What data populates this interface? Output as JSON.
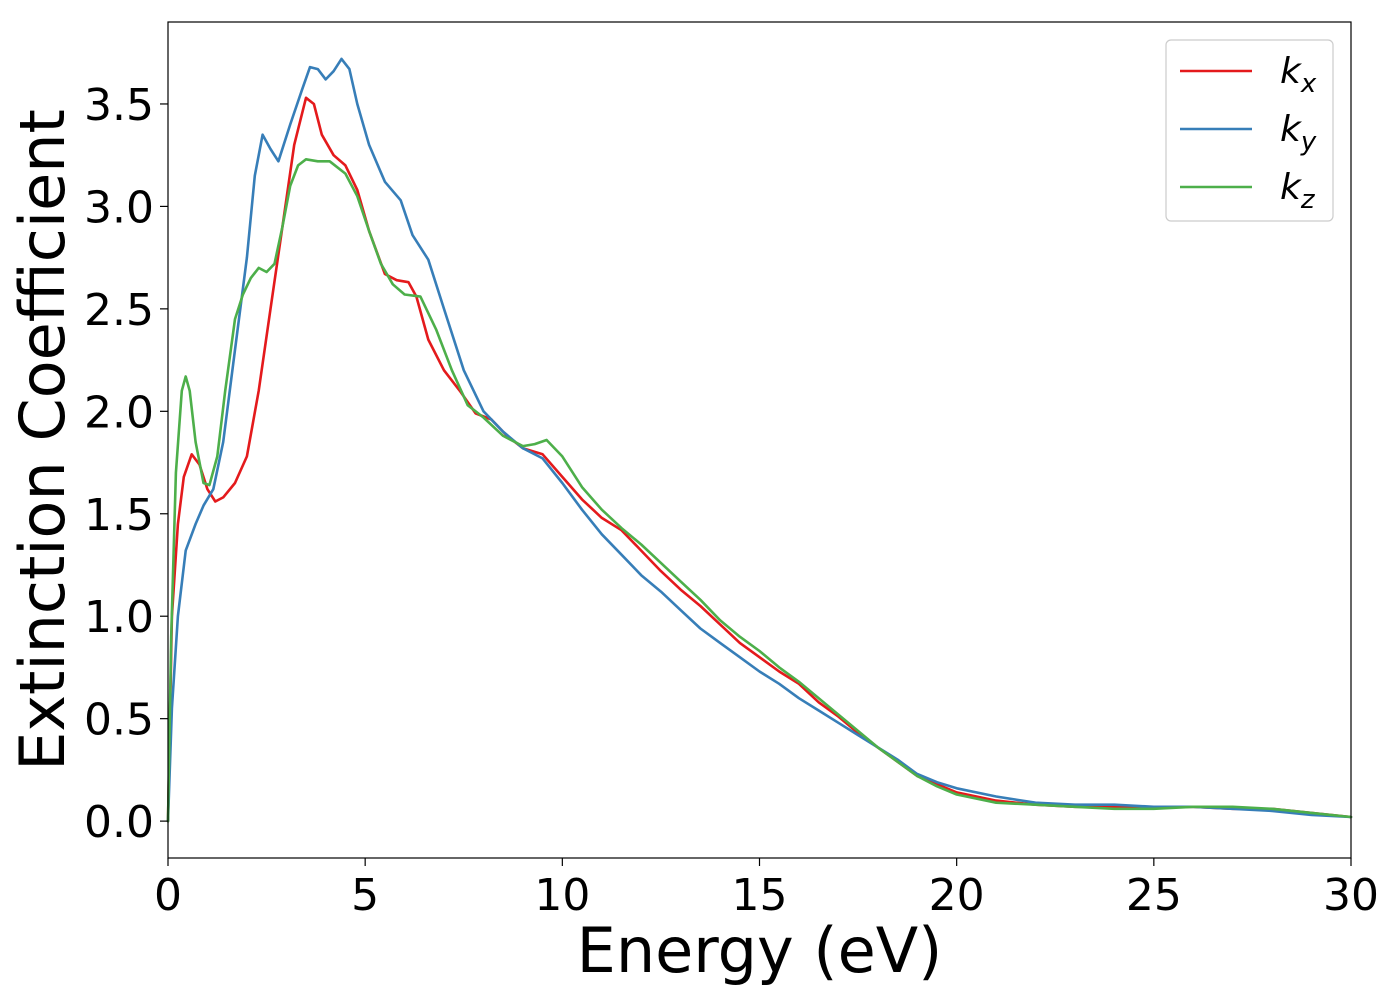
{
  "chart_data": {
    "type": "line",
    "xlabel": "Energy (eV)",
    "ylabel": "Extinction Coefficient",
    "xlim": [
      0,
      30
    ],
    "ylim": [
      -0.18,
      3.9
    ],
    "xticks": [
      0,
      5,
      10,
      15,
      20,
      25,
      30
    ],
    "yticks": [
      0.0,
      0.5,
      1.0,
      1.5,
      2.0,
      2.5,
      3.0,
      3.5
    ],
    "xtick_labels": [
      "0",
      "5",
      "10",
      "15",
      "20",
      "25",
      "30"
    ],
    "ytick_labels": [
      "0.0",
      "0.5",
      "1.0",
      "1.5",
      "2.0",
      "2.5",
      "3.0",
      "3.5"
    ],
    "grid": false,
    "legend_position": "top-right",
    "series": [
      {
        "name": "k",
        "subscript": "x",
        "color": "#e41a1c",
        "points": [
          [
            0,
            0
          ],
          [
            0.1,
            1.0
          ],
          [
            0.25,
            1.45
          ],
          [
            0.4,
            1.68
          ],
          [
            0.6,
            1.79
          ],
          [
            0.8,
            1.74
          ],
          [
            1.0,
            1.62
          ],
          [
            1.2,
            1.56
          ],
          [
            1.4,
            1.58
          ],
          [
            1.7,
            1.65
          ],
          [
            2.0,
            1.78
          ],
          [
            2.3,
            2.1
          ],
          [
            2.6,
            2.5
          ],
          [
            2.9,
            2.9
          ],
          [
            3.2,
            3.3
          ],
          [
            3.5,
            3.53
          ],
          [
            3.7,
            3.5
          ],
          [
            3.9,
            3.35
          ],
          [
            4.2,
            3.25
          ],
          [
            4.5,
            3.2
          ],
          [
            4.8,
            3.08
          ],
          [
            5.1,
            2.88
          ],
          [
            5.5,
            2.67
          ],
          [
            5.8,
            2.64
          ],
          [
            6.1,
            2.63
          ],
          [
            6.3,
            2.56
          ],
          [
            6.6,
            2.35
          ],
          [
            7.0,
            2.2
          ],
          [
            7.4,
            2.1
          ],
          [
            7.8,
            1.99
          ],
          [
            8.2,
            1.96
          ],
          [
            8.6,
            1.88
          ],
          [
            9.0,
            1.82
          ],
          [
            9.5,
            1.79
          ],
          [
            10.0,
            1.68
          ],
          [
            10.5,
            1.57
          ],
          [
            11.0,
            1.48
          ],
          [
            11.5,
            1.42
          ],
          [
            12.0,
            1.32
          ],
          [
            12.5,
            1.22
          ],
          [
            13.0,
            1.13
          ],
          [
            13.5,
            1.05
          ],
          [
            14.0,
            0.96
          ],
          [
            14.5,
            0.87
          ],
          [
            15.0,
            0.8
          ],
          [
            15.5,
            0.73
          ],
          [
            16.0,
            0.67
          ],
          [
            16.5,
            0.58
          ],
          [
            17.0,
            0.51
          ],
          [
            17.5,
            0.43
          ],
          [
            18.0,
            0.36
          ],
          [
            18.5,
            0.29
          ],
          [
            19.0,
            0.22
          ],
          [
            19.5,
            0.18
          ],
          [
            20.0,
            0.14
          ],
          [
            21.0,
            0.1
          ],
          [
            22.0,
            0.08
          ],
          [
            23.0,
            0.07
          ],
          [
            24.0,
            0.07
          ],
          [
            25.0,
            0.07
          ],
          [
            26.0,
            0.07
          ],
          [
            27.0,
            0.06
          ],
          [
            28.0,
            0.06
          ],
          [
            29.0,
            0.04
          ],
          [
            30.0,
            0.02
          ]
        ]
      },
      {
        "name": "k",
        "subscript": "y",
        "color": "#377eb8",
        "points": [
          [
            0,
            0
          ],
          [
            0.1,
            0.55
          ],
          [
            0.25,
            1.0
          ],
          [
            0.45,
            1.32
          ],
          [
            0.7,
            1.45
          ],
          [
            0.9,
            1.54
          ],
          [
            1.15,
            1.62
          ],
          [
            1.4,
            1.85
          ],
          [
            1.7,
            2.3
          ],
          [
            2.0,
            2.75
          ],
          [
            2.2,
            3.15
          ],
          [
            2.4,
            3.35
          ],
          [
            2.6,
            3.28
          ],
          [
            2.8,
            3.22
          ],
          [
            3.1,
            3.4
          ],
          [
            3.4,
            3.57
          ],
          [
            3.6,
            3.68
          ],
          [
            3.8,
            3.67
          ],
          [
            4.0,
            3.62
          ],
          [
            4.2,
            3.66
          ],
          [
            4.4,
            3.72
          ],
          [
            4.6,
            3.67
          ],
          [
            4.8,
            3.5
          ],
          [
            5.1,
            3.3
          ],
          [
            5.5,
            3.12
          ],
          [
            5.9,
            3.03
          ],
          [
            6.2,
            2.86
          ],
          [
            6.6,
            2.74
          ],
          [
            7.0,
            2.5
          ],
          [
            7.5,
            2.2
          ],
          [
            8.0,
            2.0
          ],
          [
            8.5,
            1.9
          ],
          [
            9.0,
            1.82
          ],
          [
            9.5,
            1.77
          ],
          [
            10.0,
            1.65
          ],
          [
            10.5,
            1.52
          ],
          [
            11.0,
            1.4
          ],
          [
            11.5,
            1.3
          ],
          [
            12.0,
            1.2
          ],
          [
            12.5,
            1.12
          ],
          [
            13.0,
            1.03
          ],
          [
            13.5,
            0.94
          ],
          [
            14.0,
            0.87
          ],
          [
            14.5,
            0.8
          ],
          [
            15.0,
            0.73
          ],
          [
            15.5,
            0.67
          ],
          [
            16.0,
            0.6
          ],
          [
            16.5,
            0.54
          ],
          [
            17.0,
            0.48
          ],
          [
            17.5,
            0.42
          ],
          [
            18.0,
            0.36
          ],
          [
            18.5,
            0.3
          ],
          [
            19.0,
            0.23
          ],
          [
            19.5,
            0.19
          ],
          [
            20.0,
            0.16
          ],
          [
            21.0,
            0.12
          ],
          [
            22.0,
            0.09
          ],
          [
            23.0,
            0.08
          ],
          [
            24.0,
            0.08
          ],
          [
            25.0,
            0.07
          ],
          [
            26.0,
            0.07
          ],
          [
            27.0,
            0.06
          ],
          [
            28.0,
            0.05
          ],
          [
            29.0,
            0.03
          ],
          [
            30.0,
            0.02
          ]
        ]
      },
      {
        "name": "k",
        "subscript": "z",
        "color": "#4daf4a",
        "points": [
          [
            0,
            0
          ],
          [
            0.08,
            0.9
          ],
          [
            0.2,
            1.7
          ],
          [
            0.35,
            2.1
          ],
          [
            0.45,
            2.17
          ],
          [
            0.55,
            2.1
          ],
          [
            0.7,
            1.85
          ],
          [
            0.9,
            1.65
          ],
          [
            1.05,
            1.64
          ],
          [
            1.25,
            1.78
          ],
          [
            1.45,
            2.1
          ],
          [
            1.7,
            2.45
          ],
          [
            1.9,
            2.57
          ],
          [
            2.1,
            2.65
          ],
          [
            2.3,
            2.7
          ],
          [
            2.5,
            2.68
          ],
          [
            2.7,
            2.72
          ],
          [
            2.9,
            2.9
          ],
          [
            3.1,
            3.1
          ],
          [
            3.3,
            3.2
          ],
          [
            3.5,
            3.23
          ],
          [
            3.8,
            3.22
          ],
          [
            4.1,
            3.22
          ],
          [
            4.5,
            3.16
          ],
          [
            4.8,
            3.05
          ],
          [
            5.1,
            2.88
          ],
          [
            5.4,
            2.72
          ],
          [
            5.7,
            2.62
          ],
          [
            6.0,
            2.57
          ],
          [
            6.4,
            2.56
          ],
          [
            6.8,
            2.4
          ],
          [
            7.2,
            2.2
          ],
          [
            7.6,
            2.03
          ],
          [
            8.0,
            1.97
          ],
          [
            8.5,
            1.88
          ],
          [
            9.0,
            1.83
          ],
          [
            9.3,
            1.84
          ],
          [
            9.6,
            1.86
          ],
          [
            10.0,
            1.78
          ],
          [
            10.5,
            1.63
          ],
          [
            11.0,
            1.52
          ],
          [
            11.5,
            1.43
          ],
          [
            12.0,
            1.35
          ],
          [
            12.5,
            1.26
          ],
          [
            13.0,
            1.17
          ],
          [
            13.5,
            1.08
          ],
          [
            14.0,
            0.98
          ],
          [
            14.5,
            0.9
          ],
          [
            15.0,
            0.83
          ],
          [
            15.5,
            0.75
          ],
          [
            16.0,
            0.68
          ],
          [
            16.5,
            0.6
          ],
          [
            17.0,
            0.52
          ],
          [
            17.5,
            0.44
          ],
          [
            18.0,
            0.36
          ],
          [
            18.5,
            0.29
          ],
          [
            19.0,
            0.22
          ],
          [
            19.5,
            0.17
          ],
          [
            20.0,
            0.13
          ],
          [
            21.0,
            0.09
          ],
          [
            22.0,
            0.08
          ],
          [
            23.0,
            0.07
          ],
          [
            24.0,
            0.06
          ],
          [
            25.0,
            0.06
          ],
          [
            26.0,
            0.07
          ],
          [
            27.0,
            0.07
          ],
          [
            28.0,
            0.06
          ],
          [
            29.0,
            0.04
          ],
          [
            30.0,
            0.02
          ]
        ]
      }
    ]
  }
}
